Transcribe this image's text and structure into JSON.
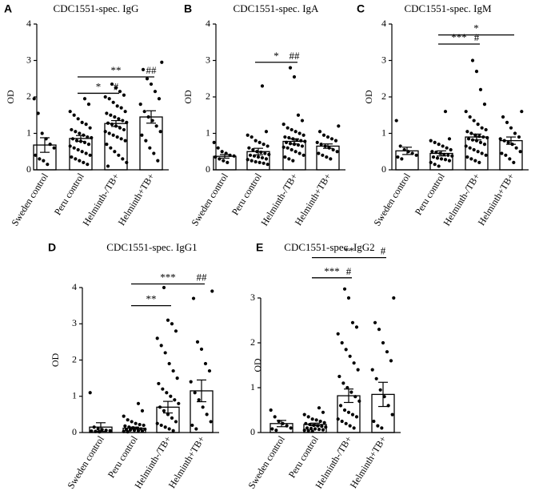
{
  "chart_data": [
    {
      "panel": "A",
      "type": "bar",
      "title": "CDC1551-spec. IgG",
      "ylabel": "OD",
      "ylim": [
        0,
        4
      ],
      "yticks": [
        "0",
        "1",
        "2",
        "3",
        "4"
      ],
      "categories": [
        "Sweden control",
        "Peru control",
        "Helminth-/TB+",
        "Helminth+TB+"
      ],
      "values": [
        0.68,
        0.86,
        1.27,
        1.45
      ],
      "errors": [
        0.2,
        0.08,
        0.08,
        0.17
      ],
      "points": [
        [
          1.95,
          1.55,
          1.0,
          0.85,
          0.7,
          0.6,
          0.4,
          0.3,
          0.25,
          0.15
        ],
        [
          1.95,
          1.8,
          1.6,
          1.5,
          1.4,
          1.3,
          1.25,
          1.15,
          1.1,
          1.05,
          1.0,
          0.95,
          0.9,
          0.88,
          0.85,
          0.8,
          0.78,
          0.75,
          0.7,
          0.65,
          0.6,
          0.55,
          0.5,
          0.45,
          0.4,
          0.35,
          0.3,
          0.25,
          0.2,
          0.15
        ],
        [
          2.35,
          2.25,
          2.15,
          2.05,
          2.0,
          1.95,
          1.85,
          1.75,
          1.7,
          1.6,
          1.55,
          1.5,
          1.45,
          1.4,
          1.35,
          1.3,
          1.28,
          1.25,
          1.2,
          1.15,
          1.1,
          1.05,
          1.0,
          0.95,
          0.9,
          0.85,
          0.8,
          0.7,
          0.6,
          0.5,
          0.4,
          0.3,
          0.2,
          0.1
        ],
        [
          2.95,
          2.75,
          2.5,
          2.35,
          2.15,
          1.95,
          1.8,
          1.6,
          1.45,
          1.35,
          1.2,
          1.05,
          0.95,
          0.8,
          0.6,
          0.45,
          0.25
        ]
      ],
      "brackets": [
        {
          "from": 1,
          "to": 2,
          "y": 2.1,
          "label": "*"
        },
        {
          "from": 1,
          "to": 3,
          "y": 2.55,
          "label": "**"
        }
      ],
      "markers": [
        {
          "cat": 2,
          "y": 2.1,
          "label": "#"
        },
        {
          "cat": 3,
          "y": 2.55,
          "label": "##"
        }
      ]
    },
    {
      "panel": "B",
      "type": "bar",
      "title": "CDC1551-spec. IgA",
      "ylabel": "OD",
      "ylim": [
        0,
        4
      ],
      "yticks": [
        "0",
        "1",
        "2",
        "3",
        "4"
      ],
      "categories": [
        "Sweden control",
        "Peru control",
        "Helminth-/TB+",
        "Helminth+TB+"
      ],
      "values": [
        0.37,
        0.5,
        0.78,
        0.65
      ],
      "errors": [
        0.05,
        0.09,
        0.07,
        0.06
      ],
      "points": [
        [
          0.75,
          0.6,
          0.5,
          0.45,
          0.4,
          0.38,
          0.35,
          0.3,
          0.25,
          0.2
        ],
        [
          2.3,
          1.05,
          0.95,
          0.9,
          0.8,
          0.75,
          0.7,
          0.65,
          0.6,
          0.55,
          0.5,
          0.48,
          0.45,
          0.42,
          0.4,
          0.38,
          0.35,
          0.33,
          0.3,
          0.28,
          0.25,
          0.22,
          0.2,
          0.18,
          0.15
        ],
        [
          2.8,
          2.55,
          1.5,
          1.35,
          1.25,
          1.15,
          1.1,
          1.05,
          1.0,
          0.95,
          0.9,
          0.88,
          0.85,
          0.82,
          0.8,
          0.78,
          0.75,
          0.72,
          0.7,
          0.68,
          0.65,
          0.62,
          0.6,
          0.55,
          0.5,
          0.45,
          0.4,
          0.35,
          0.3,
          0.25
        ],
        [
          1.2,
          1.05,
          0.95,
          0.9,
          0.85,
          0.8,
          0.75,
          0.7,
          0.65,
          0.6,
          0.55,
          0.5,
          0.45,
          0.4,
          0.35,
          0.3
        ]
      ],
      "brackets": [
        {
          "from": 1,
          "to": 2,
          "y": 2.95,
          "label": "*"
        }
      ],
      "markers": [
        {
          "cat": 2,
          "y": 2.95,
          "label": "##"
        }
      ]
    },
    {
      "panel": "C",
      "type": "bar",
      "title": "CDC1551-spec. IgM",
      "ylabel": "OD",
      "ylim": [
        0,
        4
      ],
      "yticks": [
        "0",
        "1",
        "2",
        "3",
        "4"
      ],
      "categories": [
        "Sweden control",
        "Peru control",
        "Helminth-/TB+",
        "Helminth+TB+"
      ],
      "values": [
        0.52,
        0.45,
        0.9,
        0.8
      ],
      "errors": [
        0.1,
        0.07,
        0.08,
        0.1
      ],
      "points": [
        [
          1.35,
          0.65,
          0.55,
          0.5,
          0.45,
          0.4,
          0.35,
          0.3
        ],
        [
          1.6,
          0.85,
          0.8,
          0.75,
          0.7,
          0.65,
          0.6,
          0.55,
          0.5,
          0.48,
          0.45,
          0.42,
          0.4,
          0.38,
          0.35,
          0.32,
          0.3,
          0.28,
          0.25,
          0.2,
          0.15,
          0.1
        ],
        [
          3.0,
          2.7,
          2.2,
          1.8,
          1.6,
          1.45,
          1.35,
          1.25,
          1.15,
          1.1,
          1.05,
          1.0,
          0.95,
          0.92,
          0.9,
          0.88,
          0.85,
          0.82,
          0.8,
          0.75,
          0.7,
          0.65,
          0.6,
          0.55,
          0.5,
          0.45,
          0.4,
          0.35,
          0.3,
          0.25,
          0.2
        ],
        [
          1.6,
          1.45,
          1.3,
          1.15,
          1.0,
          0.9,
          0.85,
          0.8,
          0.75,
          0.7,
          0.6,
          0.5,
          0.45,
          0.4,
          0.3,
          0.2
        ]
      ],
      "brackets": [
        {
          "from": 1,
          "to": 2,
          "y": 3.45,
          "label": "***"
        },
        {
          "from": 1,
          "to": 3,
          "y": 3.7,
          "label": "*"
        }
      ],
      "markers": [
        {
          "cat": 2,
          "y": 3.45,
          "label": "#"
        }
      ]
    },
    {
      "panel": "D",
      "type": "bar",
      "title": "CDC1551-spec. IgG1",
      "ylabel": "OD",
      "ylim": [
        0,
        4
      ],
      "yticks": [
        "0",
        "1",
        "2",
        "3",
        "4"
      ],
      "categories": [
        "Sweden control",
        "Peru control",
        "Helminth-/TB+",
        "Helminth+TB+"
      ],
      "values": [
        0.15,
        0.12,
        0.7,
        1.15
      ],
      "errors": [
        0.12,
        0.03,
        0.16,
        0.3
      ],
      "points": [
        [
          1.1,
          0.15,
          0.1,
          0.08,
          0.06,
          0.05,
          0.04,
          0.03,
          0.02
        ],
        [
          0.8,
          0.6,
          0.45,
          0.35,
          0.3,
          0.25,
          0.22,
          0.2,
          0.18,
          0.15,
          0.13,
          0.12,
          0.1,
          0.09,
          0.08,
          0.07,
          0.06,
          0.05,
          0.04,
          0.03,
          0.02
        ],
        [
          4.15,
          3.1,
          3.0,
          2.8,
          2.6,
          2.4,
          2.2,
          1.9,
          1.7,
          1.5,
          1.35,
          1.2,
          1.1,
          1.0,
          0.9,
          0.8,
          0.7,
          0.6,
          0.5,
          0.4,
          0.3,
          0.25,
          0.2,
          0.15,
          0.1,
          0.05
        ],
        [
          3.9,
          3.7,
          2.5,
          2.3,
          1.9,
          1.7,
          1.4,
          1.1,
          0.9,
          0.7,
          0.5,
          0.3,
          0.2,
          0.1
        ]
      ],
      "brackets": [
        {
          "from": 1,
          "to": 2,
          "y": 3.5,
          "label": "**"
        },
        {
          "from": 1,
          "to": 3,
          "y": 4.1,
          "label": "***"
        }
      ],
      "markers": [
        {
          "cat": 3,
          "y": 4.1,
          "label": "##"
        }
      ]
    },
    {
      "panel": "E",
      "type": "bar",
      "title": "CDC1551-spec. IgG2",
      "ylabel": "OD",
      "ylim": [
        0,
        3.5
      ],
      "yticks": [
        "0",
        "1",
        "2",
        "3"
      ],
      "categories": [
        "Sweden control",
        "Peru control",
        "Helminth-/TB+",
        "Helminth+TB+"
      ],
      "values": [
        0.2,
        0.18,
        0.82,
        0.85
      ],
      "errors": [
        0.07,
        0.03,
        0.15,
        0.27
      ],
      "points": [
        [
          0.5,
          0.35,
          0.25,
          0.2,
          0.15,
          0.1,
          0.08,
          0.05
        ],
        [
          0.55,
          0.45,
          0.4,
          0.35,
          0.3,
          0.28,
          0.25,
          0.22,
          0.2,
          0.18,
          0.16,
          0.15,
          0.14,
          0.12,
          0.1,
          0.09,
          0.08,
          0.07,
          0.06,
          0.05,
          0.04,
          0.03
        ],
        [
          3.2,
          3.0,
          2.45,
          2.35,
          2.2,
          2.0,
          1.85,
          1.7,
          1.55,
          1.4,
          1.25,
          1.1,
          1.0,
          0.9,
          0.8,
          0.7,
          0.6,
          0.5,
          0.45,
          0.4,
          0.35,
          0.3,
          0.25,
          0.2,
          0.15,
          0.1
        ],
        [
          3.0,
          2.45,
          2.3,
          2.0,
          1.8,
          1.6,
          1.4,
          1.2,
          0.95,
          0.8,
          0.6,
          0.4,
          0.25,
          0.15,
          0.1
        ]
      ],
      "brackets": [
        {
          "from": 1,
          "to": 2,
          "y": 3.45,
          "label": "***"
        },
        {
          "from": 1,
          "to": 3,
          "y": 3.9,
          "label": "**"
        }
      ],
      "markers": [
        {
          "cat": 2,
          "y": 3.45,
          "label": "#"
        },
        {
          "cat": 3,
          "y": 3.9,
          "label": "#"
        }
      ]
    }
  ]
}
